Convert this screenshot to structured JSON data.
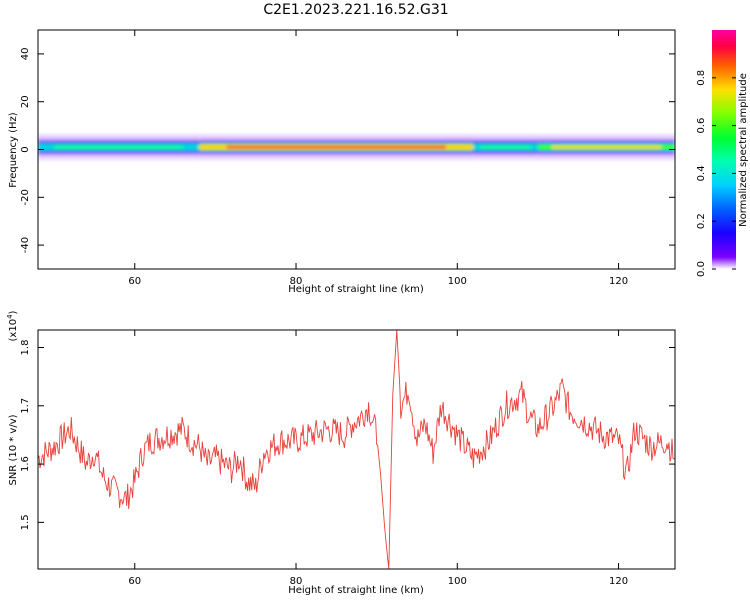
{
  "chart_data": [
    {
      "type": "heatmap",
      "title": "C2E1.2023.221.16.52.G31",
      "xlabel": "Height of straight line (km)",
      "ylabel": "Frequency (Hz)",
      "xlim": [
        48,
        127
      ],
      "ylim": [
        -50,
        50
      ],
      "xticks": [
        60,
        80,
        100,
        120
      ],
      "yticks": [
        -40,
        -20,
        0,
        20,
        40
      ],
      "colorbar": {
        "label": "Normalized spectral amplitude",
        "range": [
          0,
          1
        ],
        "ticks": [
          "0.0",
          "0.2",
          "0.4",
          "0.6",
          "0.8"
        ]
      },
      "band": {
        "center_hz": 1,
        "segments": [
          {
            "x": [
              48,
              68
            ],
            "level": 0.5
          },
          {
            "x": [
              68,
              102
            ],
            "level": 0.9
          },
          {
            "x": [
              102,
              110
            ],
            "level": 0.45
          },
          {
            "x": [
              110,
              127
            ],
            "level": 0.6
          }
        ]
      }
    },
    {
      "type": "line",
      "xlabel": "Height of straight line (km)",
      "ylabel": "SNR (10 * v/v)",
      "y_multiplier": "(x10^4)",
      "xlim": [
        48,
        127
      ],
      "ylim": [
        1.42,
        1.83
      ],
      "xticks": [
        60,
        80,
        100,
        120
      ],
      "yticks": [
        1.5,
        1.6,
        1.7,
        1.8
      ],
      "color": "#e8403a",
      "x": [
        48,
        50,
        52,
        54,
        55,
        56,
        57,
        58,
        59,
        60,
        61,
        62,
        64,
        66,
        67,
        68,
        69,
        70,
        71,
        72,
        73,
        74,
        75,
        76,
        78,
        80,
        82,
        84,
        86,
        87,
        88,
        89,
        90,
        90.5,
        91,
        91.5,
        92,
        92.5,
        93,
        94,
        95,
        96,
        97,
        98,
        100,
        102,
        104,
        106,
        107,
        108,
        109,
        110,
        112,
        113,
        114,
        116,
        118,
        120,
        121,
        122,
        124,
        126,
        127
      ],
      "values": [
        1.61,
        1.63,
        1.66,
        1.6,
        1.62,
        1.58,
        1.56,
        1.55,
        1.54,
        1.57,
        1.62,
        1.64,
        1.65,
        1.66,
        1.64,
        1.63,
        1.6,
        1.61,
        1.6,
        1.59,
        1.61,
        1.57,
        1.56,
        1.62,
        1.64,
        1.64,
        1.65,
        1.66,
        1.65,
        1.67,
        1.68,
        1.7,
        1.65,
        1.58,
        1.49,
        1.42,
        1.72,
        1.83,
        1.7,
        1.73,
        1.64,
        1.67,
        1.62,
        1.7,
        1.65,
        1.61,
        1.64,
        1.7,
        1.71,
        1.72,
        1.68,
        1.66,
        1.7,
        1.73,
        1.69,
        1.67,
        1.65,
        1.64,
        1.58,
        1.66,
        1.63,
        1.64,
        1.61
      ]
    }
  ]
}
